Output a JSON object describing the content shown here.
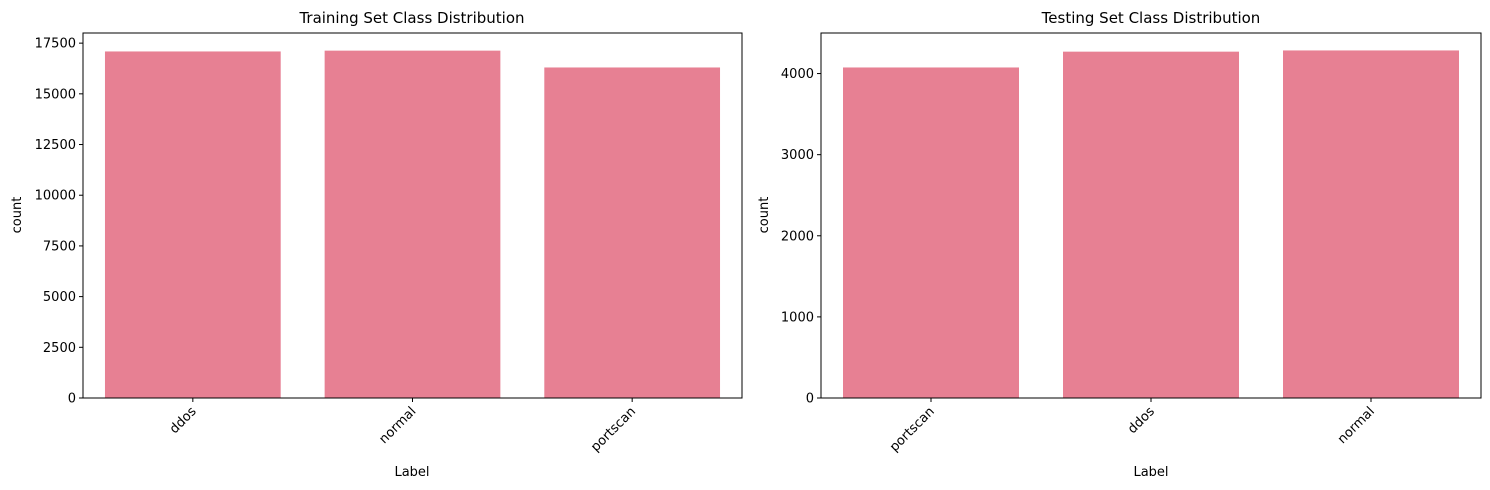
{
  "chart_data": [
    {
      "type": "bar",
      "title": "Training Set Class Distribution",
      "xlabel": "Label",
      "ylabel": "count",
      "categories": [
        "ddos",
        "normal",
        "portscan"
      ],
      "values": [
        17090,
        17130,
        16300
      ],
      "ylim": [
        0,
        18000
      ],
      "yticks": [
        0,
        2500,
        5000,
        7500,
        10000,
        12500,
        15000,
        17500
      ],
      "ytick_labels": [
        "0",
        "2500",
        "5000",
        "7500",
        "10000",
        "12500",
        "15000",
        "17500"
      ],
      "bar_color": "#e78093",
      "xtick_rotation": 45,
      "grid": false
    },
    {
      "type": "bar",
      "title": "Testing Set Class Distribution",
      "xlabel": "Label",
      "ylabel": "count",
      "categories": [
        "portscan",
        "ddos",
        "normal"
      ],
      "values": [
        4075,
        4270,
        4285
      ],
      "ylim": [
        0,
        4500
      ],
      "yticks": [
        0,
        1000,
        2000,
        3000,
        4000
      ],
      "ytick_labels": [
        "0",
        "1000",
        "2000",
        "3000",
        "4000"
      ],
      "bar_color": "#e78093",
      "xtick_rotation": 45,
      "grid": false
    }
  ]
}
